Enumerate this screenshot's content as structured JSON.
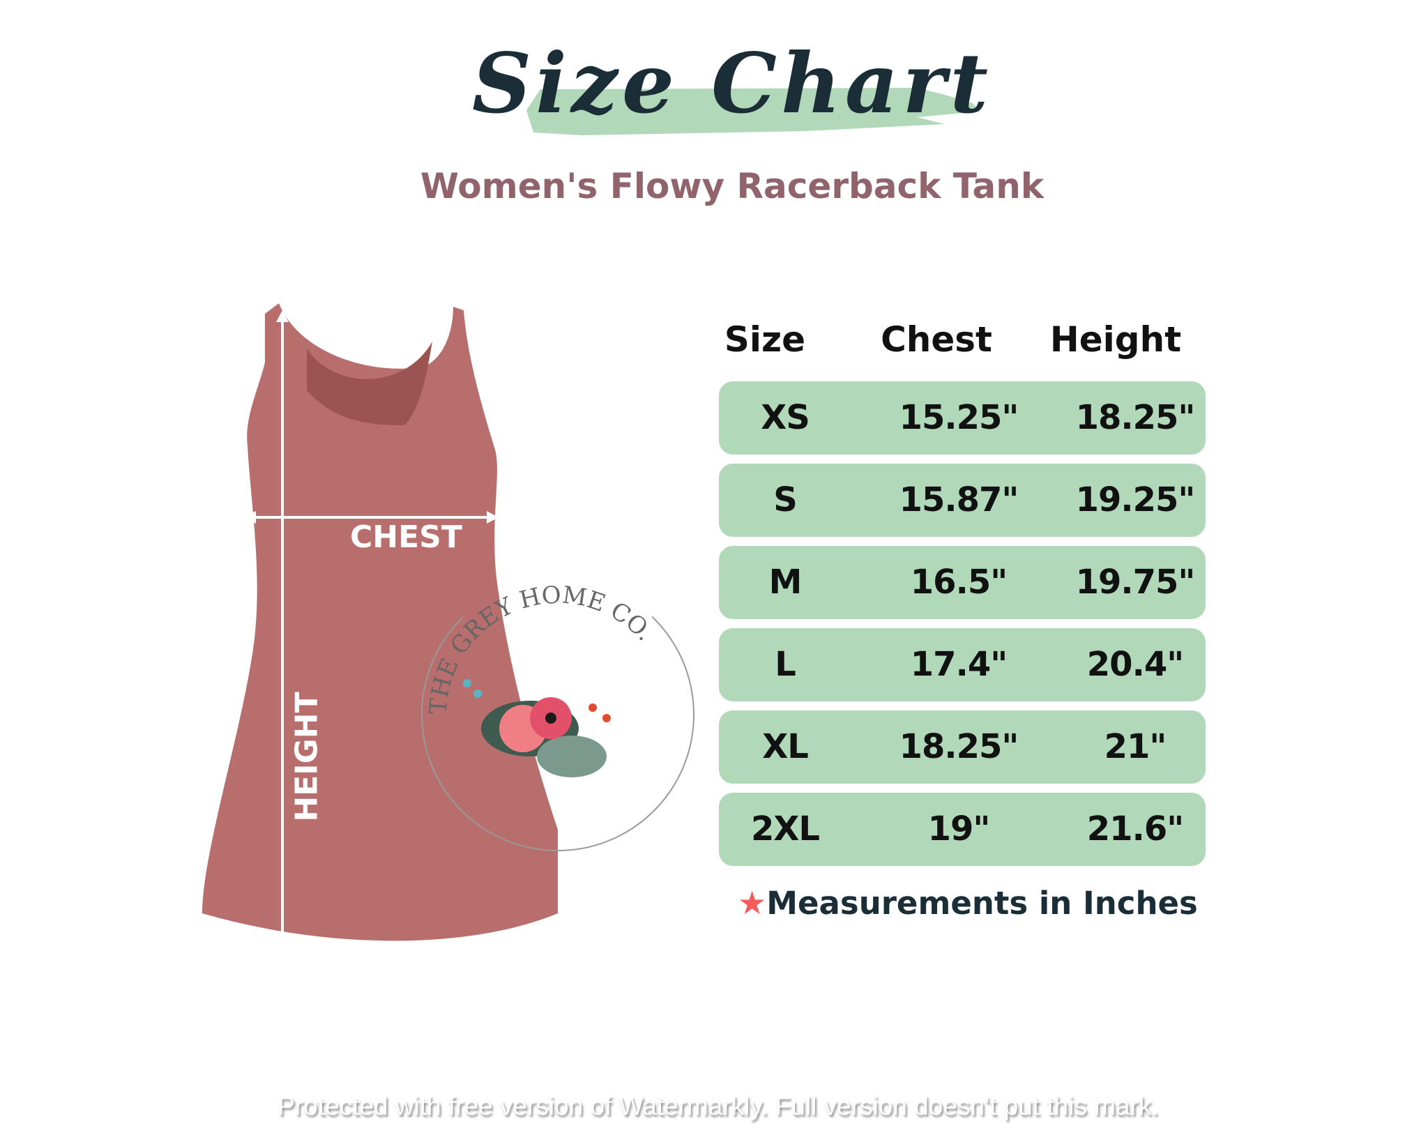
{
  "header": {
    "title": "Size Chart",
    "subtitle": "Women's Flowy Racerback Tank"
  },
  "garment": {
    "chest_label": "CHEST",
    "height_label": "HEIGHT",
    "color": "#b86e6c"
  },
  "logo": {
    "text": "THE GREY HOME CO."
  },
  "table": {
    "headers": [
      "Size",
      "Chest",
      "Height"
    ],
    "rows": [
      [
        "XS",
        "15.25\"",
        "18.25\""
      ],
      [
        "S",
        "15.87\"",
        "19.25\""
      ],
      [
        "M",
        "16.5\"",
        "19.75\""
      ],
      [
        "L",
        "17.4\"",
        "20.4\""
      ],
      [
        "XL",
        "18.25\"",
        "21\""
      ],
      [
        "2XL",
        "19\"",
        "21.6\""
      ]
    ],
    "row_color": "#b1d9b9"
  },
  "footnote": {
    "icon": "star-icon",
    "text": "Measurements in Inches"
  },
  "watermark": "Protected with free version of Watermarkly. Full version doesn't put this mark."
}
